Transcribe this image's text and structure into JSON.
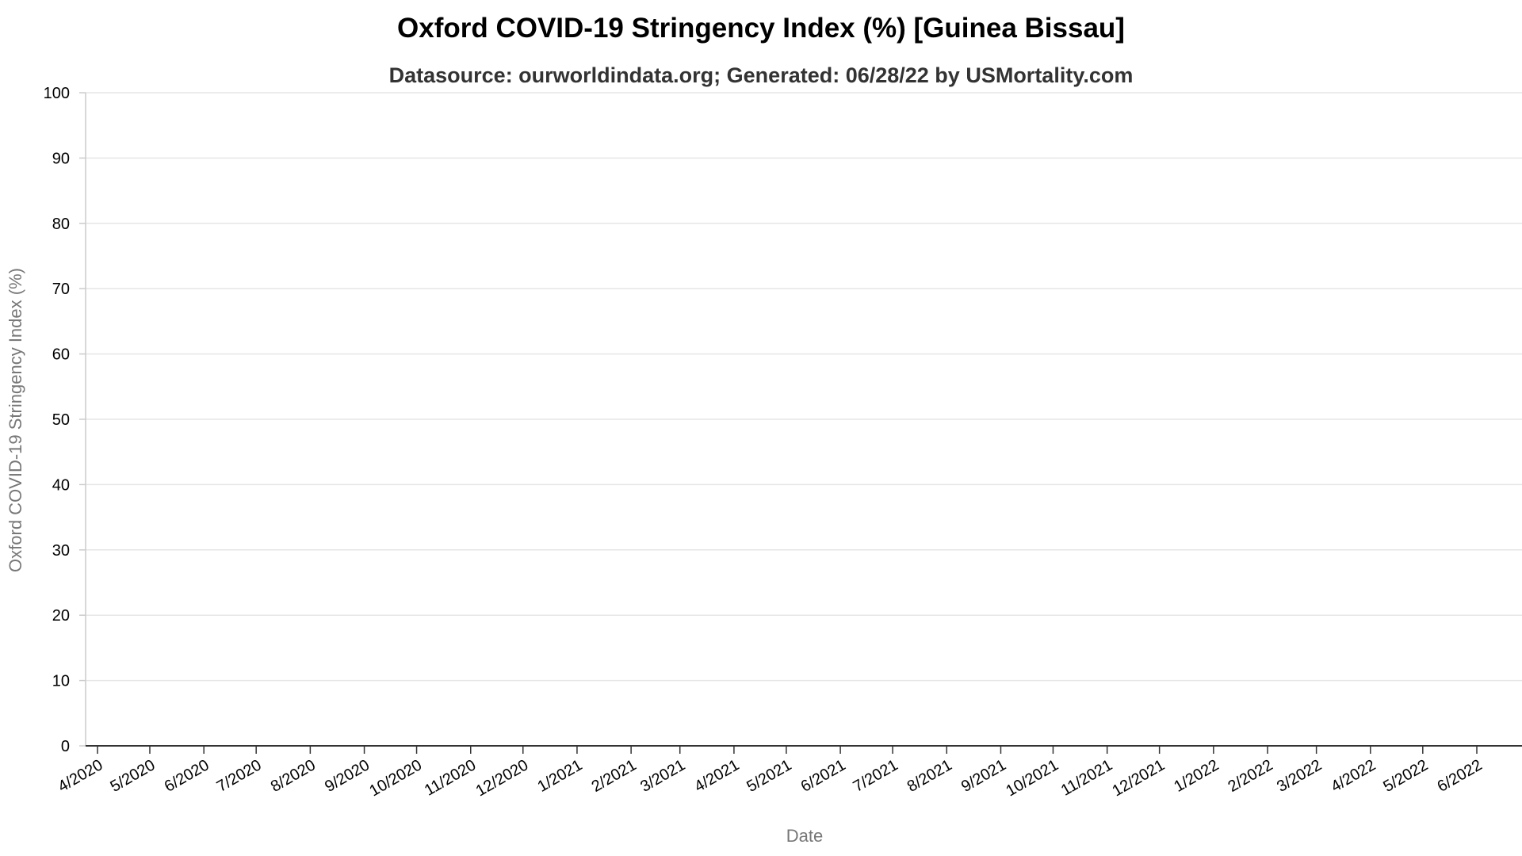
{
  "chart_data": {
    "type": "line",
    "title": "Oxford COVID-19 Stringency Index (%) [Guinea Bissau]",
    "subtitle": "Datasource: ourworldindata.org; Generated: 06/28/22 by USMortality.com",
    "xlabel": "Date",
    "ylabel": "Oxford COVID-19 Stringency Index (%)",
    "ylim": [
      0,
      100
    ],
    "yticks": [
      0,
      10,
      20,
      30,
      40,
      50,
      60,
      70,
      80,
      90,
      100
    ],
    "xticks": [
      "4/2020",
      "5/2020",
      "6/2020",
      "7/2020",
      "8/2020",
      "9/2020",
      "10/2020",
      "11/2020",
      "12/2020",
      "1/2021",
      "2/2021",
      "3/2021",
      "4/2021",
      "5/2021",
      "6/2021",
      "7/2021",
      "8/2021",
      "9/2021",
      "10/2021",
      "11/2021",
      "12/2021",
      "1/2022",
      "2/2022",
      "3/2022",
      "4/2022",
      "5/2022",
      "6/2022"
    ],
    "grid": true,
    "series": [],
    "colors": {
      "grid": "#e6e6e6",
      "axis": "#333333",
      "axis_title": "#777777",
      "tick": "#000000"
    }
  }
}
